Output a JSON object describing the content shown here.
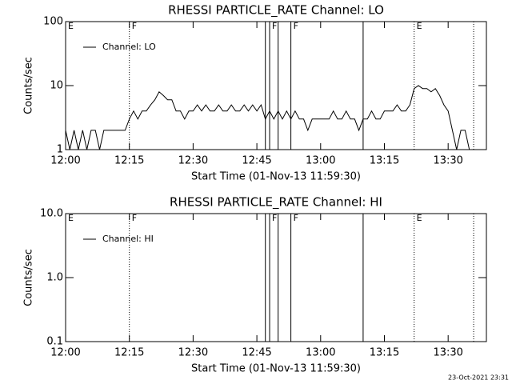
{
  "chart_data": [
    {
      "type": "line",
      "title": "RHESSI PARTICLE_RATE Channel: LO",
      "xlabel": "Start Time (01-Nov-13 11:59:30)",
      "ylabel": "Counts/sec",
      "log_y": true,
      "legend": "upper left",
      "xlim": [
        "12:00",
        "13:39"
      ],
      "xticks": [
        "12:00",
        "12:15",
        "12:30",
        "12:45",
        "13:00",
        "13:15",
        "13:30"
      ],
      "ylim": [
        1,
        100
      ],
      "yticks": [
        1,
        10,
        100
      ],
      "flags": [
        {
          "x": "12:00",
          "label": "E"
        },
        {
          "x": "12:15",
          "label": "F",
          "style": "dotted"
        },
        {
          "x": "12:47",
          "style": "solid"
        },
        {
          "x": "12:48",
          "label": "F",
          "style": "solid"
        },
        {
          "x": "12:50",
          "style": "solid"
        },
        {
          "x": "12:53",
          "label": "F",
          "style": "solid"
        },
        {
          "x": "13:10",
          "style": "solid"
        },
        {
          "x": "13:22",
          "label": "E",
          "style": "dotted"
        },
        {
          "x": "13:36",
          "style": "dotted"
        }
      ],
      "x": [
        "12:00",
        "12:01",
        "12:02",
        "12:03",
        "12:04",
        "12:05",
        "12:06",
        "12:07",
        "12:08",
        "12:09",
        "12:10",
        "12:14",
        "12:15",
        "12:16",
        "12:17",
        "12:18",
        "12:19",
        "12:20",
        "12:21",
        "12:22",
        "12:23",
        "12:24",
        "12:25",
        "12:26",
        "12:27",
        "12:28",
        "12:29",
        "12:30",
        "12:31",
        "12:32",
        "12:33",
        "12:34",
        "12:35",
        "12:36",
        "12:37",
        "12:38",
        "12:39",
        "12:40",
        "12:41",
        "12:42",
        "12:43",
        "12:44",
        "12:45",
        "12:46",
        "12:47",
        "12:48",
        "12:49",
        "12:50",
        "12:51",
        "12:52",
        "12:53",
        "12:54",
        "12:55",
        "12:56",
        "12:57",
        "12:58",
        "12:59",
        "13:00",
        "13:01",
        "13:02",
        "13:03",
        "13:04",
        "13:05",
        "13:06",
        "13:07",
        "13:08",
        "13:09",
        "13:10",
        "13:11",
        "13:12",
        "13:13",
        "13:14",
        "13:15",
        "13:16",
        "13:17",
        "13:18",
        "13:19",
        "13:20",
        "13:21",
        "13:22",
        "13:23",
        "13:24",
        "13:25",
        "13:26",
        "13:27",
        "13:28",
        "13:29",
        "13:30",
        "13:31",
        "13:32",
        "13:33",
        "13:34",
        "13:35"
      ],
      "series": [
        {
          "name": "Channel: LO",
          "color": "#000000",
          "values": [
            2,
            1,
            2,
            1,
            2,
            1,
            2,
            2,
            1,
            2,
            2,
            2,
            3,
            4,
            3,
            4,
            4,
            5,
            6,
            8,
            7,
            6,
            6,
            4,
            4,
            3,
            4,
            4,
            5,
            4,
            5,
            4,
            4,
            5,
            4,
            4,
            5,
            4,
            4,
            5,
            4,
            5,
            4,
            5,
            3,
            4,
            3,
            4,
            3,
            4,
            3,
            4,
            3,
            3,
            2,
            3,
            3,
            3,
            3,
            3,
            4,
            3,
            3,
            4,
            3,
            3,
            2,
            3,
            3,
            4,
            3,
            3,
            4,
            4,
            4,
            5,
            4,
            4,
            5,
            9,
            10,
            9,
            9,
            8,
            9,
            7,
            5,
            4,
            2,
            1,
            2,
            2,
            1
          ]
        }
      ]
    },
    {
      "type": "line",
      "title": "RHESSI PARTICLE_RATE Channel: HI",
      "xlabel": "Start Time (01-Nov-13 11:59:30)",
      "ylabel": "Counts/sec",
      "log_y": true,
      "legend": "upper left",
      "xlim": [
        "12:00",
        "13:39"
      ],
      "xticks": [
        "12:00",
        "12:15",
        "12:30",
        "12:45",
        "13:00",
        "13:15",
        "13:30"
      ],
      "ylim": [
        0.1,
        10
      ],
      "yticks": [
        0.1,
        {
          "value": 1,
          "label": "1.0"
        },
        {
          "value": 10,
          "label": "10.0"
        }
      ],
      "flags": [
        {
          "x": "12:00",
          "label": "E"
        },
        {
          "x": "12:15",
          "label": "F",
          "style": "dotted"
        },
        {
          "x": "12:47",
          "style": "solid"
        },
        {
          "x": "12:48",
          "label": "F",
          "style": "solid"
        },
        {
          "x": "12:50",
          "style": "solid"
        },
        {
          "x": "12:53",
          "label": "F",
          "style": "solid"
        },
        {
          "x": "13:10",
          "style": "solid"
        },
        {
          "x": "13:22",
          "label": "E",
          "style": "dotted"
        },
        {
          "x": "13:36",
          "style": "dotted"
        }
      ],
      "x": [],
      "series": [
        {
          "name": "Channel: HI",
          "color": "#000000",
          "values": []
        }
      ]
    }
  ],
  "footer": "23-Oct-2021 23:31"
}
